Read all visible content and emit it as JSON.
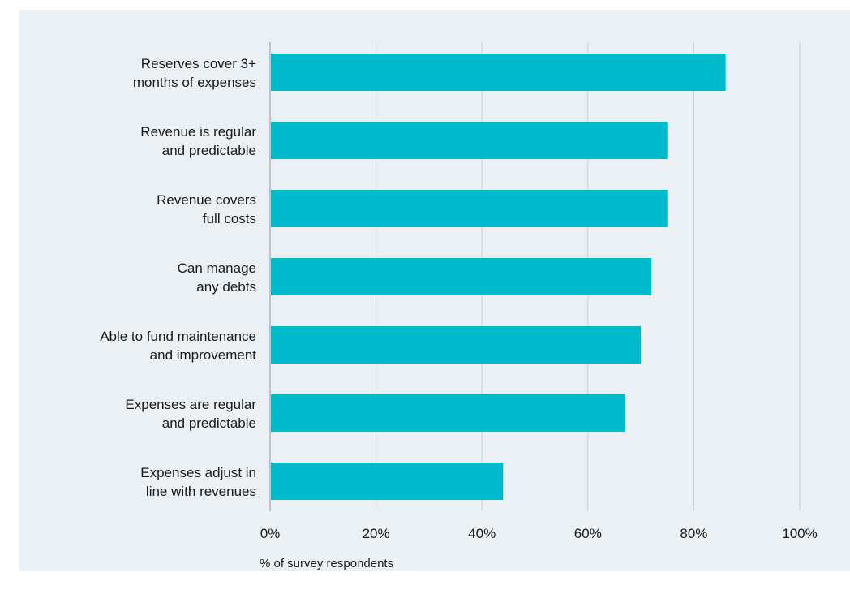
{
  "chart_data": {
    "type": "bar",
    "orientation": "horizontal",
    "categories": [
      [
        "Reserves cover 3+",
        "months of expenses"
      ],
      [
        "Revenue is regular",
        "and predictable"
      ],
      [
        "Revenue covers",
        "full costs"
      ],
      [
        "Can manage",
        "any debts"
      ],
      [
        "Able to fund maintenance",
        "and improvement"
      ],
      [
        "Expenses are regular",
        "and predictable"
      ],
      [
        "Expenses adjust in",
        "line with revenues"
      ]
    ],
    "values": [
      86,
      75,
      75,
      72,
      70,
      67,
      44
    ],
    "xlim": [
      0,
      100
    ],
    "xticks": [
      "0%",
      "20%",
      "40%",
      "60%",
      "80%",
      "100%"
    ],
    "xtick_values": [
      0,
      20,
      40,
      60,
      80,
      100
    ],
    "xlabel": "% of survey respondents",
    "grid": true,
    "colors": {
      "bar": "#00b9cd",
      "grid": "#c9ced3",
      "background": "#ebf0f4",
      "text": "#1a1a1a"
    }
  }
}
